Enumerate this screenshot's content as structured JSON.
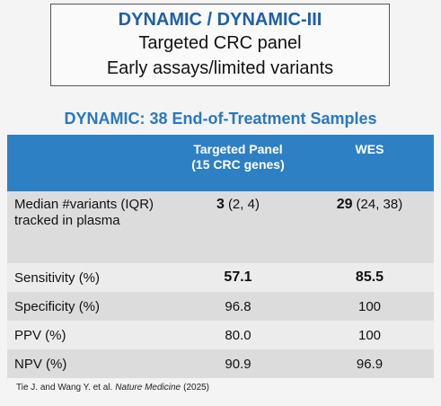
{
  "box": {
    "title": "DYNAMIC / DYNAMIC-III",
    "lines": [
      "Targeted CRC panel",
      "Early assays/limited variants"
    ]
  },
  "table": {
    "title": "DYNAMIC: 38 End-of-Treatment Samples",
    "header": [
      [
        "Targeted Panel",
        "(15 CRC genes)"
      ],
      [
        "WES"
      ]
    ],
    "rows": [
      {
        "label": "Median #variants (IQR) tracked in plasma",
        "cells": [
          {
            "bold": "3",
            "rest": "(2, 4)"
          },
          {
            "bold": "29",
            "rest": "(24, 38)"
          }
        ]
      },
      {
        "label": "Sensitivity (%)",
        "cells": [
          {
            "bold": "57.1"
          },
          {
            "bold": "85.5"
          }
        ]
      },
      {
        "label": "Specificity (%)",
        "cells": [
          {
            "text": "96.8"
          },
          {
            "text": "100"
          }
        ]
      },
      {
        "label": "PPV (%)",
        "cells": [
          {
            "text": "80.0"
          },
          {
            "text": "100"
          }
        ]
      },
      {
        "label": "NPV (%)",
        "cells": [
          {
            "text": "90.9"
          },
          {
            "text": "96.9"
          }
        ]
      }
    ]
  },
  "citation": {
    "authors": "Tie J. and Wang Y. et al.",
    "journal": "Nature Medicine",
    "year": "(2025)"
  }
}
